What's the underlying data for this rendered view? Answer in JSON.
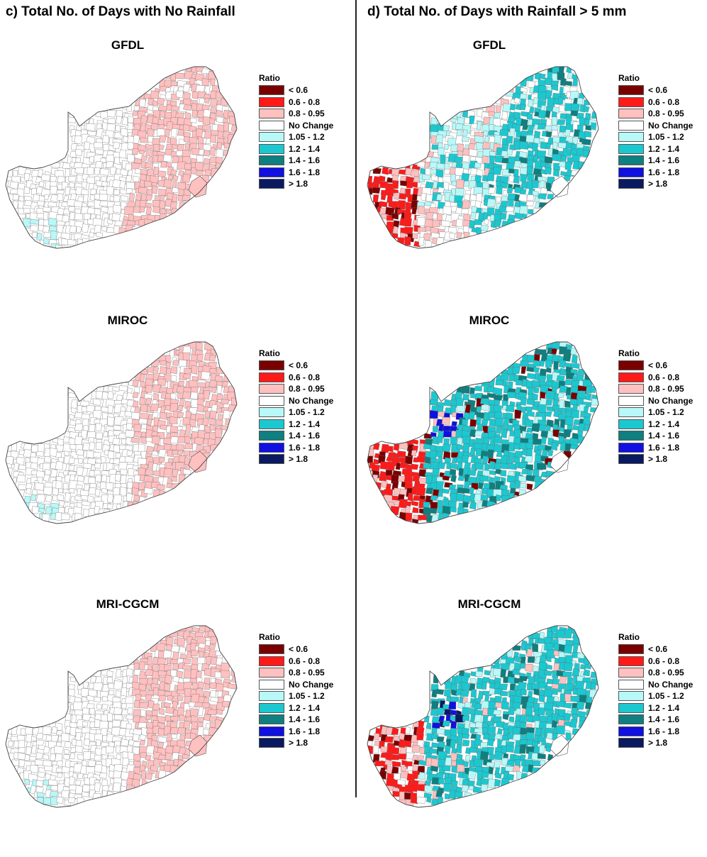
{
  "columns": [
    {
      "title": "c) Total No. of Days with No Rainfall",
      "panels": [
        {
          "model": "GFDL",
          "pattern": "c_gfdl"
        },
        {
          "model": "MIROC",
          "pattern": "c_miroc"
        },
        {
          "model": "MRI-CGCM",
          "pattern": "c_mri"
        }
      ]
    },
    {
      "title": "d) Total No. of Days with Rainfall > 5 mm",
      "panels": [
        {
          "model": "GFDL",
          "pattern": "d_gfdl"
        },
        {
          "model": "MIROC",
          "pattern": "d_miroc"
        },
        {
          "model": "MRI-CGCM",
          "pattern": "d_mri"
        }
      ]
    }
  ],
  "legend": {
    "title": "Ratio",
    "classes": [
      {
        "label": "< 0.6",
        "color": "#7a0000"
      },
      {
        "label": "0.6 - 0.8",
        "color": "#ff1a1a"
      },
      {
        "label": "0.8 - 0.95",
        "color": "#ffc0c0"
      },
      {
        "label": "No Change",
        "color": "#ffffff"
      },
      {
        "label": "1.05 - 1.2",
        "color": "#b8f8f8"
      },
      {
        "label": "1.2 - 1.4",
        "color": "#1cc8d0"
      },
      {
        "label": "1.4 - 1.6",
        "color": "#0f7f80"
      },
      {
        "label": "1.6 - 1.8",
        "color": "#1010e0"
      },
      {
        "label": "> 1.8",
        "color": "#0a1a60"
      }
    ]
  }
}
